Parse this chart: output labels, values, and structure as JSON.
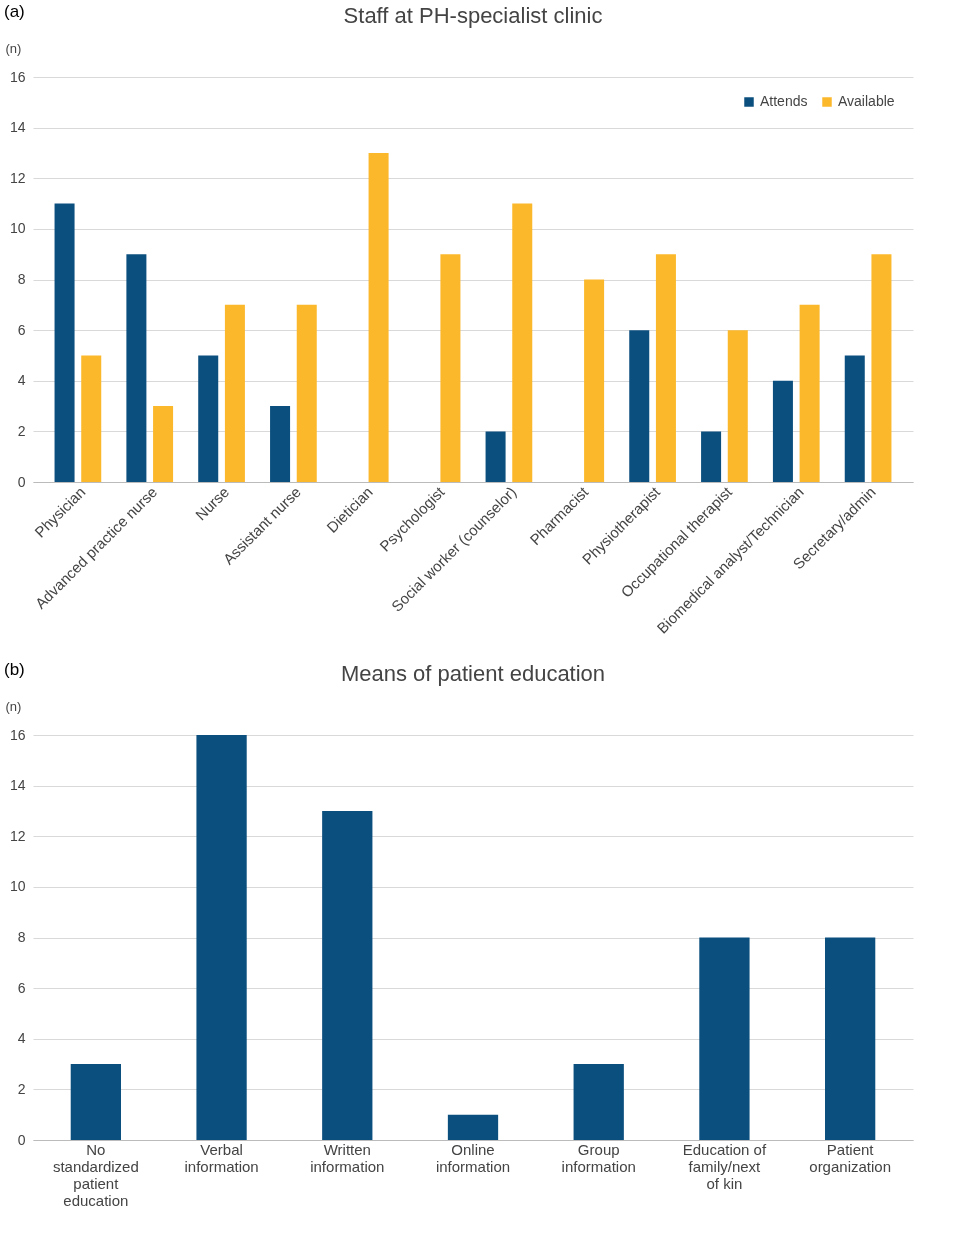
{
  "chart_data": [
    {
      "type": "bar",
      "title": "Staff at PH-specialist clinic",
      "ylabel": "(n)",
      "annotations": [
        "(a)"
      ],
      "categories": [
        "Physician",
        "Advanced practice nurse",
        "Nurse",
        "Assistant nurse",
        "Dietician",
        "Psychologist",
        "Social worker (counselor)",
        "Pharmacist",
        "Physiotherapist",
        "Occupational therapist",
        "Biomedical analyst/Technician",
        "Secretary/admin"
      ],
      "series": [
        {
          "name": "Attends",
          "color": "#0b4f7e",
          "values": [
            11,
            9,
            5,
            3,
            0,
            0,
            2,
            0,
            6,
            2,
            4,
            5
          ]
        },
        {
          "name": "Available",
          "color": "#fbb82a",
          "values": [
            5,
            3,
            7,
            7,
            13,
            9,
            11,
            8,
            9,
            6,
            7,
            9
          ]
        }
      ],
      "ylim": [
        0,
        16
      ],
      "yticks": [
        0,
        2,
        4,
        6,
        8,
        10,
        12,
        14,
        16
      ],
      "grid": "y",
      "legend": "top right"
    },
    {
      "type": "bar",
      "title": "Means of patient education",
      "ylabel": "(n)",
      "annotations": [
        "(b)"
      ],
      "categories": [
        "No standardized patient education",
        "Verbal information",
        "Written information",
        "Online information",
        "Group information",
        "Education of family/next of kin",
        "Patient organization"
      ],
      "series": [
        {
          "color": "#0b4f7e",
          "values": [
            3,
            16,
            13,
            1,
            3,
            8,
            8
          ]
        }
      ],
      "ylim": [
        0,
        16
      ],
      "yticks": [
        0,
        2,
        4,
        6,
        8,
        10,
        12,
        14,
        16
      ],
      "grid": "y"
    }
  ]
}
